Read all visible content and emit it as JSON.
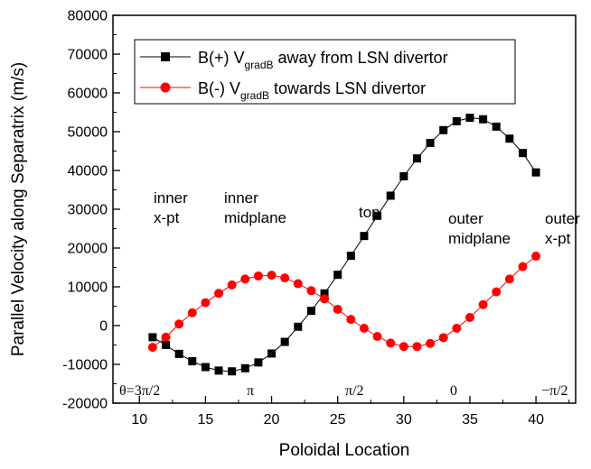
{
  "chart_data": {
    "type": "line",
    "xlabel": "Poloidal Location",
    "ylabel": "Parallel Velocity along Separatrix (m/s)",
    "xlim": [
      8,
      43
    ],
    "ylim": [
      -20000,
      80000
    ],
    "x_ticks": [
      10,
      15,
      20,
      25,
      30,
      35,
      40
    ],
    "y_ticks": [
      -20000,
      -10000,
      0,
      10000,
      20000,
      30000,
      40000,
      50000,
      60000,
      70000,
      80000
    ],
    "legend_position": "top-left",
    "series": [
      {
        "name": "B(+)  V",
        "name_sub": "gradB",
        "name_suffix": " away from LSN divertor",
        "color": "#000000",
        "marker": "square",
        "x": [
          11,
          12,
          13,
          14,
          15,
          16,
          17,
          18,
          19,
          20,
          21,
          22,
          23,
          24,
          25,
          26,
          27,
          28,
          29,
          30,
          31,
          32,
          33,
          34,
          35,
          36,
          37,
          38,
          39,
          40
        ],
        "y": [
          -3000,
          -5000,
          -7300,
          -9200,
          -10700,
          -11600,
          -11800,
          -11000,
          -9500,
          -7200,
          -4200,
          -300,
          3800,
          8300,
          13100,
          18000,
          23100,
          28300,
          33500,
          38500,
          43100,
          47100,
          50400,
          52700,
          53600,
          53200,
          51300,
          48200,
          44500,
          39500
        ]
      },
      {
        "name": "B(-)  V",
        "name_sub": "gradB",
        "name_suffix": " towards LSN divertor",
        "color": "#ff0000",
        "marker": "circle",
        "x": [
          11,
          12,
          13,
          14,
          15,
          16,
          17,
          18,
          19,
          20,
          21,
          22,
          23,
          24,
          25,
          26,
          27,
          28,
          29,
          30,
          31,
          32,
          33,
          34,
          35,
          36,
          37,
          38,
          39,
          40
        ],
        "y": [
          -5600,
          -3000,
          400,
          3300,
          5900,
          8300,
          10500,
          12000,
          12800,
          13000,
          12300,
          10800,
          9000,
          6900,
          4200,
          1600,
          -700,
          -2800,
          -4500,
          -5400,
          -5400,
          -4600,
          -3100,
          -700,
          2100,
          5400,
          8700,
          12000,
          15200,
          17900
        ]
      }
    ],
    "region_labels": [
      {
        "lines": [
          "inner",
          "x-pt"
        ]
      },
      {
        "lines": [
          "inner",
          "midplane"
        ]
      },
      {
        "lines": [
          "top"
        ]
      },
      {
        "lines": [
          "outer",
          "midplane"
        ]
      },
      {
        "lines": [
          "outer",
          "x-pt"
        ]
      }
    ],
    "theta_labels": [
      "θ=3π/2",
      "π",
      "π/2",
      "0",
      "−π/2"
    ]
  }
}
